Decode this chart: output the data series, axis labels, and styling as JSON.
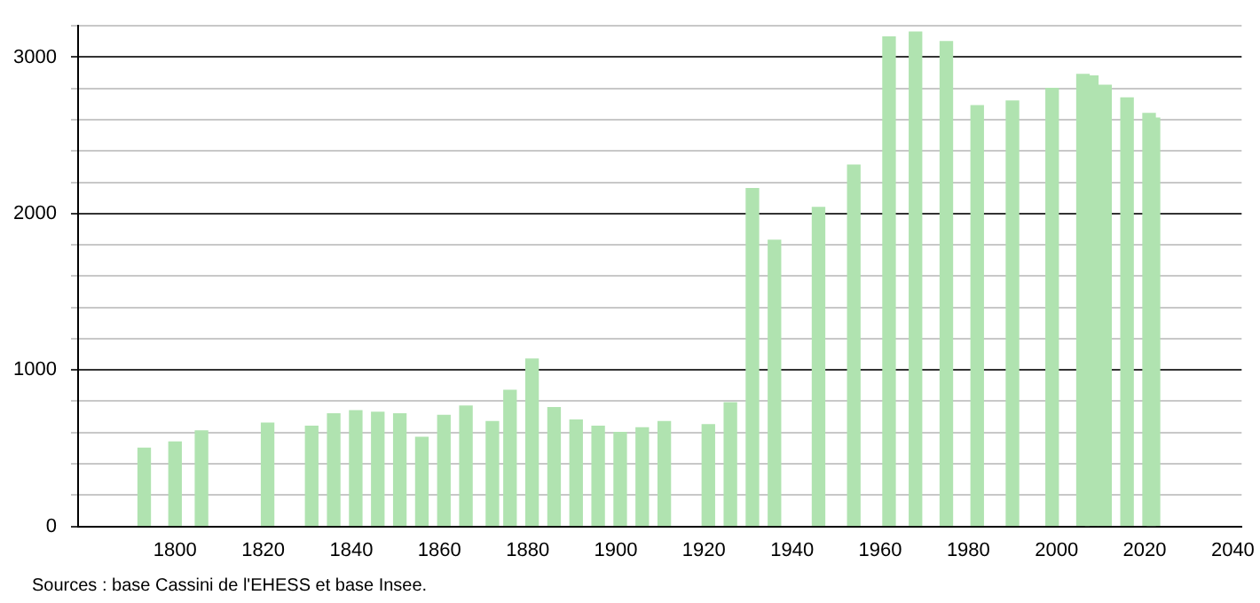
{
  "chart_data": {
    "type": "bar",
    "color": "#b0e3b0",
    "x": [
      1793,
      1800,
      1806,
      1821,
      1831,
      1836,
      1841,
      1846,
      1851,
      1856,
      1861,
      1866,
      1872,
      1876,
      1881,
      1886,
      1891,
      1896,
      1901,
      1906,
      1911,
      1921,
      1926,
      1931,
      1936,
      1946,
      1954,
      1962,
      1968,
      1975,
      1982,
      1990,
      1999,
      2006,
      2008,
      2011,
      2016,
      2021,
      2022
    ],
    "values": [
      500,
      540,
      610,
      660,
      640,
      720,
      740,
      730,
      720,
      570,
      710,
      770,
      670,
      870,
      1070,
      760,
      680,
      640,
      600,
      630,
      670,
      650,
      790,
      2160,
      1830,
      2040,
      2310,
      3130,
      3160,
      3100,
      2690,
      2720,
      2800,
      2890,
      2880,
      2820,
      2740,
      2640,
      2610
    ],
    "xlim": [
      1778,
      2042
    ],
    "xticks": [
      1800,
      1820,
      1840,
      1860,
      1880,
      1900,
      1920,
      1940,
      1960,
      1980,
      2000,
      2020,
      2040
    ],
    "ylim": [
      0,
      3200
    ],
    "yticks": [
      0,
      {
        "value": 200,
        "label": null
      },
      {
        "value": 400,
        "label": null
      },
      {
        "value": 600,
        "label": null
      },
      {
        "value": 800,
        "label": null
      },
      1000,
      {
        "value": 1200,
        "label": null
      },
      {
        "value": 1400,
        "label": null
      },
      {
        "value": 1600,
        "label": null
      },
      {
        "value": 1800,
        "label": null
      },
      2000,
      {
        "value": 2200,
        "label": null
      },
      {
        "value": 2400,
        "label": null
      },
      {
        "value": 2600,
        "label": null
      },
      {
        "value": 2800,
        "label": null
      },
      3000,
      {
        "value": 3200,
        "label": null
      }
    ],
    "grid": "y",
    "annotations": [
      "Sources : base Cassini de l'EHESS et base Insee."
    ]
  }
}
